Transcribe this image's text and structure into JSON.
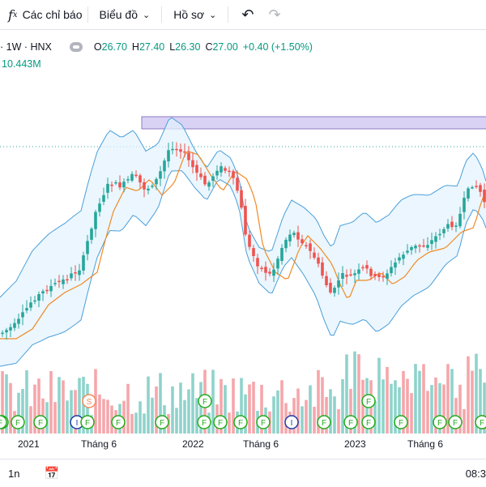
{
  "toolbar": {
    "indicators_label": "Các chỉ báo",
    "chart_type_label": "Biểu đồ",
    "profile_label": "Hồ sơ"
  },
  "legend": {
    "symbol": "· 1W · HNX",
    "open_label": "O",
    "open": "26.70",
    "high_label": "H",
    "high": "27.40",
    "low_label": "L",
    "low": "26.30",
    "close_label": "C",
    "close": "27.00",
    "change": "+0.40 (+1.50%)",
    "volume": "10.443M"
  },
  "colors": {
    "up": "#26a69a",
    "down": "#ef5350",
    "bollinger": "#4a9fd8",
    "ma": "#f08a24",
    "band_fill": "#e3f2fd",
    "highlight": "#d9d2f5"
  },
  "axis": {
    "labels": [
      "2021",
      "Tháng 6",
      "2022",
      "Tháng 6",
      "2023",
      "Tháng 6"
    ]
  },
  "markers": [
    {
      "kind": "F"
    },
    {
      "kind": "F"
    },
    {
      "kind": "F"
    },
    {
      "kind": "I"
    },
    {
      "kind": "F"
    },
    {
      "kind": "F"
    },
    {
      "kind": "F"
    },
    {
      "kind": "F"
    },
    {
      "kind": "F"
    },
    {
      "kind": "F"
    },
    {
      "kind": "F"
    },
    {
      "kind": "I"
    },
    {
      "kind": "F"
    },
    {
      "kind": "F"
    },
    {
      "kind": "F"
    },
    {
      "kind": "F"
    },
    {
      "kind": "F"
    },
    {
      "kind": "S"
    },
    {
      "kind": "F"
    },
    {
      "kind": "S"
    },
    {
      "kind": "F"
    },
    {
      "kind": "F"
    },
    {
      "kind": "F"
    },
    {
      "kind": "F"
    }
  ],
  "bottom": {
    "interval": "1n",
    "time": "08:3"
  }
}
